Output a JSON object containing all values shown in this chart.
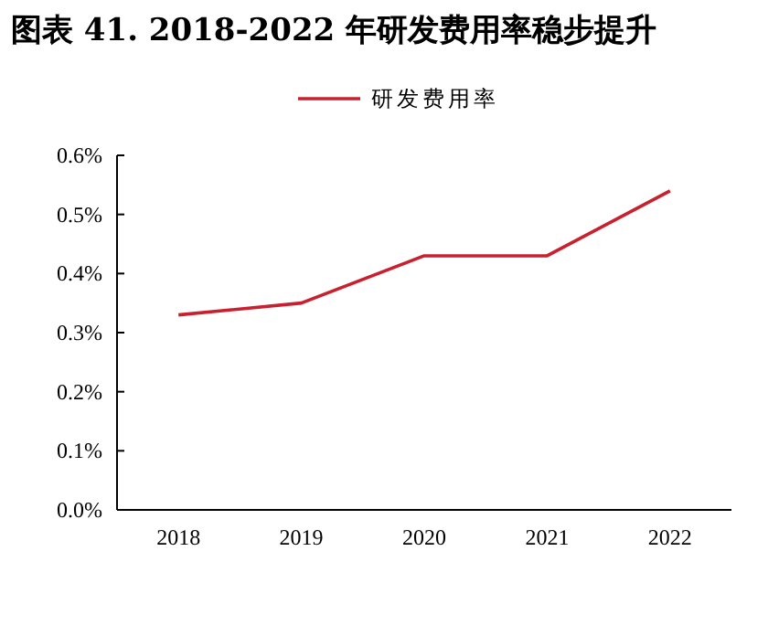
{
  "chart_data": {
    "type": "line",
    "title": "图表 41. 2018-2022 年研发费用率稳步提升",
    "categories": [
      "2018",
      "2019",
      "2020",
      "2021",
      "2022"
    ],
    "series": [
      {
        "name": "研发费用率",
        "color": "#c8202f",
        "values": [
          0.33,
          0.35,
          0.43,
          0.43,
          0.54
        ]
      }
    ],
    "ylim": [
      0,
      0.6
    ],
    "yticks": [
      {
        "value": 0,
        "label": "0.0%"
      },
      {
        "value": 0.1,
        "label": "0.1%"
      },
      {
        "value": 0.2,
        "label": "0.2%"
      },
      {
        "value": 0.3,
        "label": "0.3%"
      },
      {
        "value": 0.4,
        "label": "0.4%"
      },
      {
        "value": 0.5,
        "label": "0.5%"
      },
      {
        "value": 0.6,
        "label": "0.6%"
      }
    ],
    "legend": "top",
    "grid": false,
    "marker": "none",
    "line_style": "solid"
  }
}
